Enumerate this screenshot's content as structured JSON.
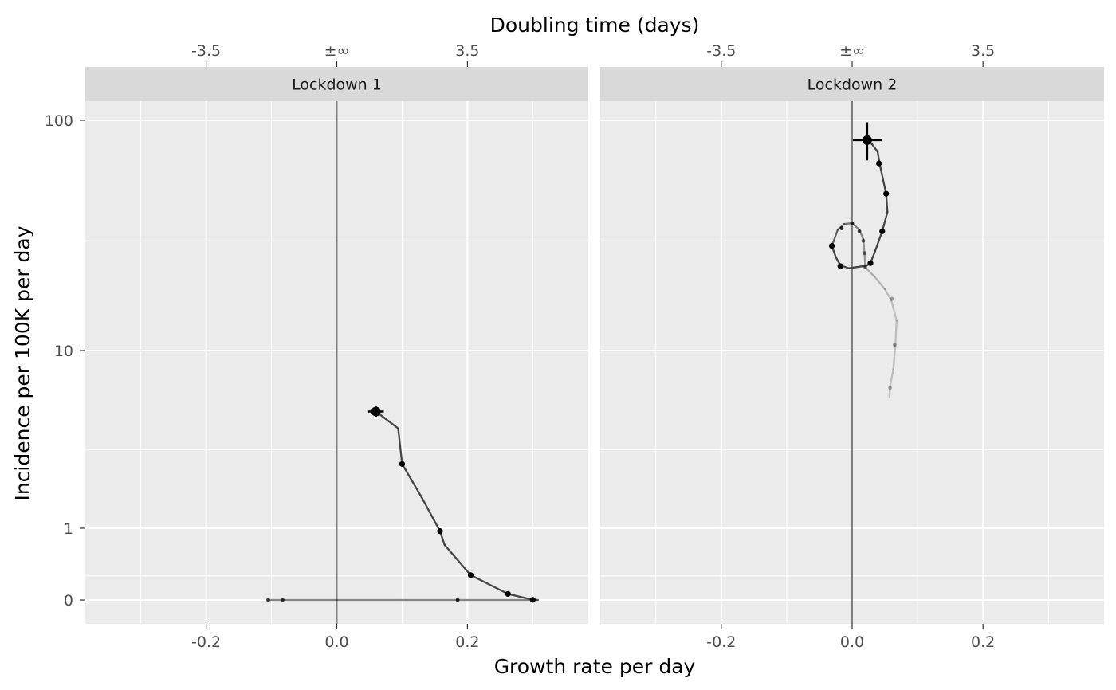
{
  "chart_data": {
    "type": "line",
    "x_axis": {
      "label": "Growth rate per day",
      "range": [
        -0.385,
        0.385
      ],
      "ticks": [
        -0.2,
        0.0,
        0.2
      ],
      "tick_labels": [
        "-0.2",
        "0.0",
        "0.2"
      ],
      "minor_ticks": [
        -0.3,
        -0.1,
        0.1,
        0.3
      ]
    },
    "x2_axis": {
      "label": "Doubling time (days)",
      "ticks_at_growth_rate": [
        -0.2,
        0.0,
        0.2
      ],
      "tick_labels": [
        "-3.5",
        "±∞",
        "3.5"
      ]
    },
    "y_axis": {
      "label": "Incidence per 100K per day",
      "scale": "pseudo-log",
      "range": [
        -0.1,
        150
      ],
      "ticks": [
        0,
        1,
        10,
        100
      ],
      "tick_labels": [
        "0",
        "1",
        "10",
        "100"
      ],
      "minor_ticks": [
        0.3,
        3,
        30
      ]
    },
    "grid": true,
    "panels": [
      {
        "label": "Lockdown 1",
        "current_point": {
          "x": 0.06,
          "y": 4.8,
          "x_err": 0.012,
          "y_err": [
            4.5,
            5.1
          ]
        },
        "series": [
          {
            "x": 0.06,
            "y": 4.8,
            "alpha": 0.9
          },
          {
            "x": 0.094,
            "y": 3.9,
            "alpha": 0.9
          },
          {
            "x": 0.1,
            "y": 2.5,
            "alpha": 0.9
          },
          {
            "x": 0.13,
            "y": 1.6,
            "alpha": 0.9
          },
          {
            "x": 0.158,
            "y": 0.95,
            "alpha": 0.9
          },
          {
            "x": 0.165,
            "y": 0.73,
            "alpha": 0.9
          },
          {
            "x": 0.205,
            "y": 0.31,
            "alpha": 0.9
          },
          {
            "x": 0.262,
            "y": 0.075,
            "alpha": 0.9
          },
          {
            "x": 0.3,
            "y": 0.002,
            "alpha": 0.9
          },
          {
            "x": 0.308,
            "y": 0.0,
            "alpha": 0.6
          },
          {
            "x": 0.185,
            "y": 0.0,
            "alpha": 0.6
          },
          {
            "x": 0.0,
            "y": 0.0,
            "alpha": 0.6
          },
          {
            "x": -0.083,
            "y": 0.0,
            "alpha": 0.6
          },
          {
            "x": -0.105,
            "y": 0.0,
            "alpha": 0.6
          }
        ],
        "markers": [
          {
            "x": 0.1,
            "y": 2.5,
            "alpha": 1.0
          },
          {
            "x": 0.158,
            "y": 0.95,
            "alpha": 1.0
          },
          {
            "x": 0.205,
            "y": 0.31,
            "alpha": 1.0
          },
          {
            "x": 0.262,
            "y": 0.075,
            "alpha": 1.0
          },
          {
            "x": 0.3,
            "y": 0.002,
            "alpha": 1.0
          },
          {
            "x": 0.185,
            "y": 0.0,
            "alpha": 0.8
          },
          {
            "x": -0.083,
            "y": 0.0,
            "alpha": 0.7
          },
          {
            "x": -0.105,
            "y": 0.0,
            "alpha": 0.7
          }
        ]
      },
      {
        "label": "Lockdown 2",
        "current_point": {
          "x": 0.023,
          "y": 82,
          "x_err": 0.022,
          "y_err": [
            67,
            98
          ]
        },
        "series": [
          {
            "x": 0.023,
            "y": 82,
            "alpha": 0.9
          },
          {
            "x": 0.03,
            "y": 79,
            "alpha": 0.9
          },
          {
            "x": 0.039,
            "y": 73,
            "alpha": 0.9
          },
          {
            "x": 0.042,
            "y": 65,
            "alpha": 0.9
          },
          {
            "x": 0.052,
            "y": 48,
            "alpha": 0.9
          },
          {
            "x": 0.054,
            "y": 40,
            "alpha": 0.9
          },
          {
            "x": 0.046,
            "y": 33,
            "alpha": 0.9
          },
          {
            "x": 0.035,
            "y": 27,
            "alpha": 0.9
          },
          {
            "x": 0.028,
            "y": 24,
            "alpha": 0.9
          },
          {
            "x": 0.022,
            "y": 23.4,
            "alpha": 0.9
          },
          {
            "x": -0.005,
            "y": 22.8,
            "alpha": 0.9
          },
          {
            "x": -0.018,
            "y": 23.5,
            "alpha": 0.9
          },
          {
            "x": -0.025,
            "y": 25.5,
            "alpha": 0.9
          },
          {
            "x": -0.031,
            "y": 28.5,
            "alpha": 0.9
          },
          {
            "x": -0.022,
            "y": 33.5,
            "alpha": 0.75
          },
          {
            "x": -0.012,
            "y": 35.5,
            "alpha": 0.7
          },
          {
            "x": 0.0,
            "y": 35.8,
            "alpha": 0.65
          },
          {
            "x": 0.011,
            "y": 33.5,
            "alpha": 0.6
          },
          {
            "x": 0.017,
            "y": 30.5,
            "alpha": 0.55
          },
          {
            "x": 0.019,
            "y": 26.5,
            "alpha": 0.5
          },
          {
            "x": 0.02,
            "y": 23.0,
            "alpha": 0.45
          },
          {
            "x": 0.034,
            "y": 21.0,
            "alpha": 0.35
          },
          {
            "x": 0.05,
            "y": 18.5,
            "alpha": 0.3
          },
          {
            "x": 0.06,
            "y": 16.5,
            "alpha": 0.25
          },
          {
            "x": 0.068,
            "y": 13.5,
            "alpha": 0.25
          },
          {
            "x": 0.066,
            "y": 10.5,
            "alpha": 0.25
          },
          {
            "x": 0.063,
            "y": 8.0,
            "alpha": 0.25
          },
          {
            "x": 0.058,
            "y": 6.5,
            "alpha": 0.25
          },
          {
            "x": 0.057,
            "y": 5.7,
            "alpha": 0.25
          }
        ],
        "markers": [
          {
            "x": 0.041,
            "y": 65,
            "alpha": 1.0
          },
          {
            "x": 0.052,
            "y": 48,
            "alpha": 1.0
          },
          {
            "x": 0.046,
            "y": 33,
            "alpha": 1.0
          },
          {
            "x": 0.028,
            "y": 24,
            "alpha": 1.0
          },
          {
            "x": -0.018,
            "y": 23.3,
            "alpha": 1.0
          },
          {
            "x": -0.031,
            "y": 28.5,
            "alpha": 1.0
          },
          {
            "x": -0.016,
            "y": 34.0,
            "alpha": 0.85
          },
          {
            "x": 0.0,
            "y": 35.7,
            "alpha": 0.75
          },
          {
            "x": 0.011,
            "y": 33.0,
            "alpha": 0.65
          },
          {
            "x": 0.017,
            "y": 30.0,
            "alpha": 0.6
          },
          {
            "x": 0.019,
            "y": 26.5,
            "alpha": 0.5
          },
          {
            "x": 0.02,
            "y": 23.0,
            "alpha": 0.45
          },
          {
            "x": 0.061,
            "y": 16.8,
            "alpha": 0.35
          },
          {
            "x": 0.065,
            "y": 10.6,
            "alpha": 0.3
          },
          {
            "x": 0.058,
            "y": 6.4,
            "alpha": 0.3
          }
        ]
      }
    ],
    "colors": {
      "panel_background": "#ebebeb",
      "grid": "#ffffff",
      "strip": "#d9d9d9",
      "zero_line": "#808080",
      "path": "#333333",
      "points": "#000000"
    }
  }
}
